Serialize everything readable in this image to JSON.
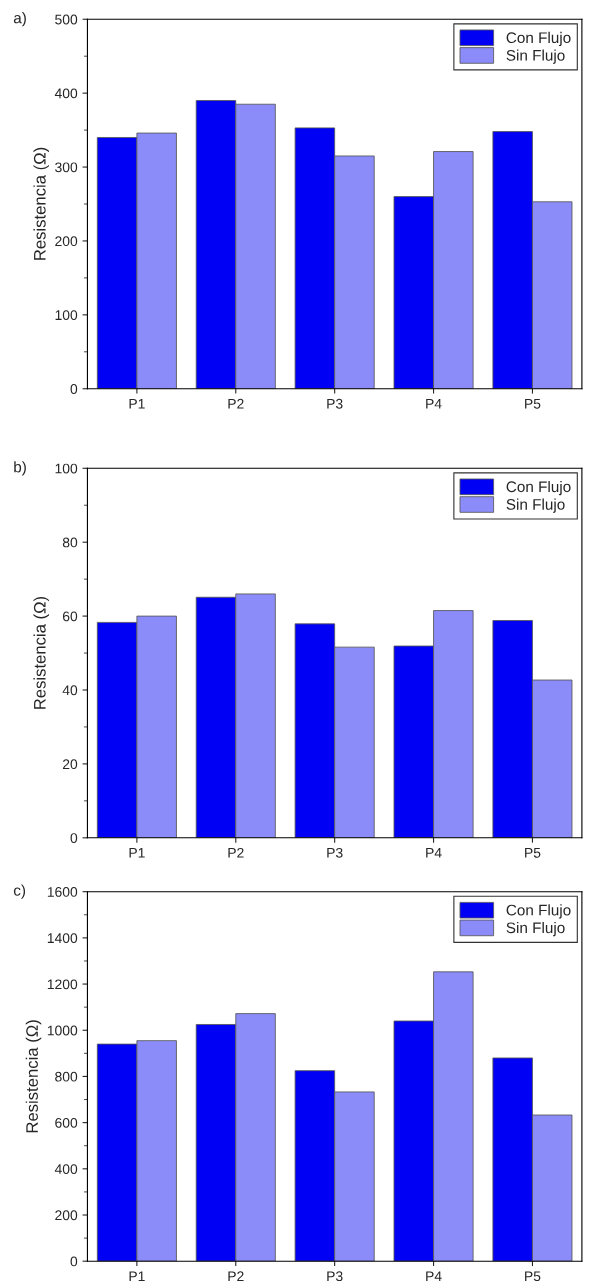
{
  "chart_data": [
    {
      "type": "bar",
      "title": "a)",
      "ylabel": "Resistencia (Ω)",
      "categories": [
        "P1",
        "P2",
        "P3",
        "P4",
        "P5"
      ],
      "ylim": [
        0,
        500
      ],
      "yticks": [
        0,
        100,
        200,
        300,
        400,
        500
      ],
      "legend": "top right",
      "grid": false,
      "series": [
        {
          "name": "Con Flujo",
          "color": "#0000f5",
          "values": [
            340,
            390,
            353,
            260,
            348
          ]
        },
        {
          "name": "Sin Flujo",
          "color": "#8b8bf9",
          "values": [
            346,
            385,
            315,
            321,
            253
          ]
        }
      ]
    },
    {
      "type": "bar",
      "title": "b)",
      "ylabel": "Resistencia (Ω)",
      "categories": [
        "P1",
        "P2",
        "P3",
        "P4",
        "P5"
      ],
      "ylim": [
        0,
        100
      ],
      "yticks": [
        0,
        20,
        40,
        60,
        80,
        100
      ],
      "legend": "top right",
      "grid": false,
      "series": [
        {
          "name": "Con Flujo",
          "color": "#0000f5",
          "values": [
            58.3,
            65.1,
            57.9,
            51.9,
            58.8
          ]
        },
        {
          "name": "Sin Flujo",
          "color": "#8b8bf9",
          "values": [
            60.0,
            66.0,
            51.6,
            61.5,
            42.7
          ]
        }
      ]
    },
    {
      "type": "bar",
      "title": "c)",
      "ylabel": "Resistencia (Ω)",
      "categories": [
        "P1",
        "P2",
        "P3",
        "P4",
        "P5"
      ],
      "ylim": [
        0,
        1600
      ],
      "yticks": [
        0,
        200,
        400,
        600,
        800,
        1000,
        1200,
        1400,
        1600
      ],
      "legend": "top right",
      "grid": false,
      "series": [
        {
          "name": "Con Flujo",
          "color": "#0000f5",
          "values": [
            940,
            1025,
            825,
            1040,
            880
          ]
        },
        {
          "name": "Sin Flujo",
          "color": "#8b8bf9",
          "values": [
            955,
            1072,
            733,
            1253,
            633
          ]
        }
      ]
    }
  ]
}
